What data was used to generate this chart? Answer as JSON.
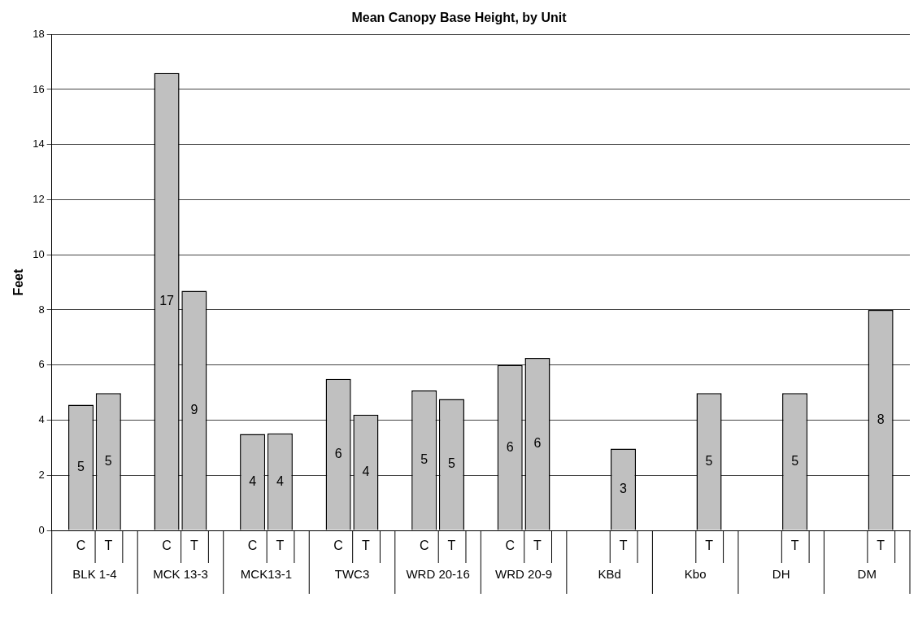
{
  "chart_data": {
    "type": "bar",
    "title": "Mean Canopy Base Height, by Unit",
    "ylabel": "Feet",
    "categories": [
      "BLK 1-4",
      "MCK 13-3",
      "MCK13-1",
      "TWC3",
      "WRD 20-16",
      "WRD 20-9",
      "KBd",
      "Kbo",
      "DH",
      "DM"
    ],
    "series": [
      {
        "name": "C",
        "color": "#c0c0c0",
        "values": [
          4.56,
          16.6,
          3.5,
          5.5,
          5.08,
          6.0,
          null,
          null,
          null,
          null
        ],
        "value_labels": [
          "5",
          "17",
          "4",
          "6",
          "5",
          "6",
          null,
          null,
          null,
          null
        ]
      },
      {
        "name": "T",
        "color": "#c0c0c0",
        "values": [
          4.98,
          8.69,
          3.52,
          4.2,
          4.77,
          6.26,
          2.97,
          4.98,
          4.98,
          8.0
        ],
        "value_labels": [
          "5",
          "9",
          "4",
          "4",
          "5",
          "6",
          "3",
          "5",
          "5",
          "8"
        ]
      }
    ],
    "ylim": [
      0,
      18
    ],
    "yticks": [
      0,
      2,
      4,
      6,
      8,
      10,
      12,
      14,
      16,
      18
    ],
    "grid": "y",
    "legend": false
  }
}
